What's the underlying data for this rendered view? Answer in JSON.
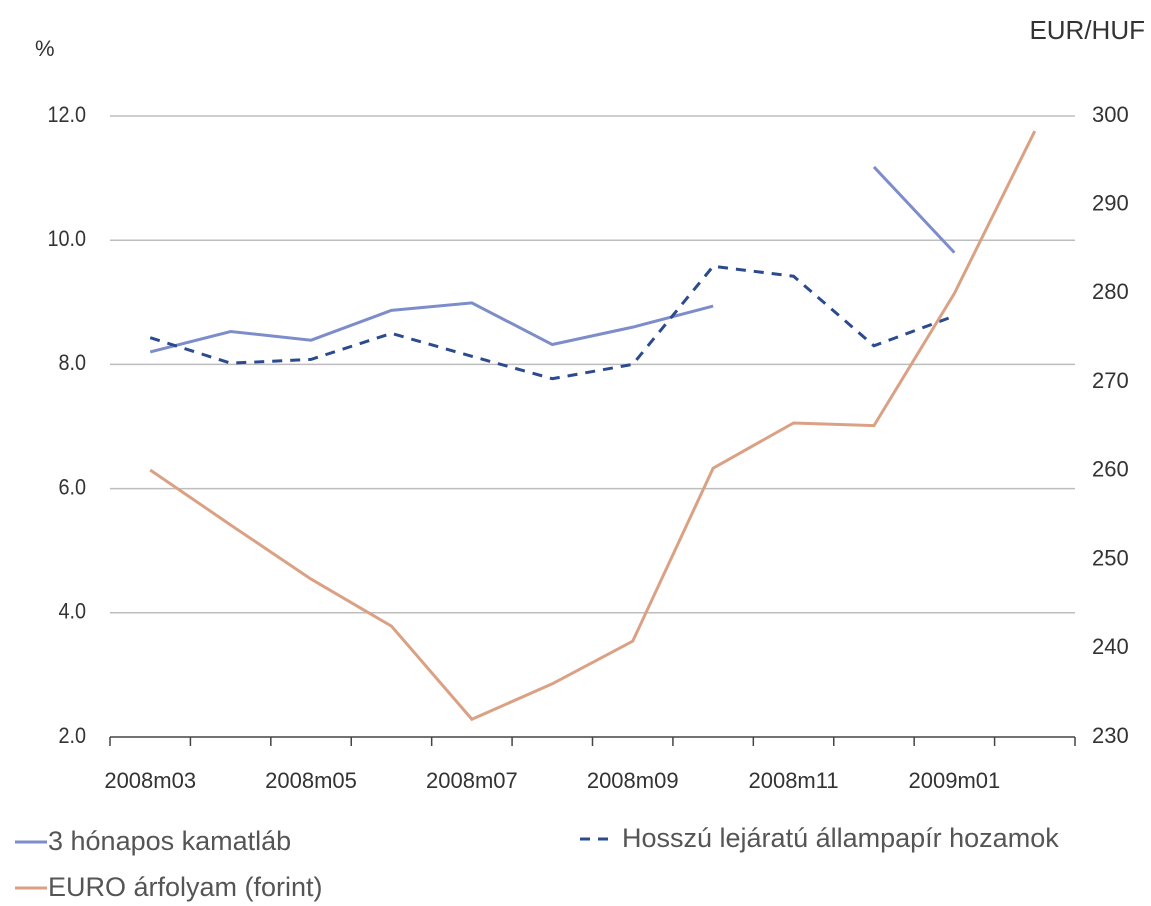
{
  "chart_data": {
    "type": "line",
    "ylabel": "%",
    "y2label": "EUR/HUF",
    "categories": [
      "2008m03",
      null,
      "2008m05",
      null,
      "2008m07",
      null,
      "2008m09",
      null,
      "2008m11",
      null,
      "2009m01",
      null
    ],
    "series": [
      {
        "name": "3 hónapos kamatláb",
        "color": "#7d8dca",
        "dash": false,
        "values": [
          8.2,
          8.53,
          8.39,
          8.87,
          8.99,
          8.32,
          8.6,
          8.94,
          null,
          11.18,
          9.8,
          null
        ]
      },
      {
        "name": "Hosszú lejáratú állampapír hozamok",
        "color": "#2c4a8e",
        "dash": true,
        "values": [
          8.43,
          8.02,
          8.08,
          8.5,
          8.13,
          7.77,
          8.0,
          9.58,
          9.42,
          8.3,
          8.78,
          null
        ]
      },
      {
        "name": "EURO árfolyam (forint)",
        "color": "#daa184",
        "dash": false,
        "axis": "y2",
        "values": [
          260.1,
          253.9,
          247.8,
          242.5,
          232.0,
          236.0,
          240.8,
          260.3,
          265.4,
          265.1,
          280.0,
          298.3
        ]
      }
    ],
    "ylim": [
      2,
      12
    ],
    "yticks": [
      {
        "value": 2,
        "label": "2.0"
      },
      {
        "value": 4,
        "label": "4.0"
      },
      {
        "value": 6,
        "label": "6.0"
      },
      {
        "value": 8,
        "label": "8.0"
      },
      {
        "value": 10,
        "label": "10.0"
      },
      {
        "value": 12,
        "label": "12.0"
      }
    ],
    "y2lim": [
      230,
      300
    ],
    "y2ticks": [
      230,
      240,
      250,
      260,
      270,
      280,
      290,
      300
    ],
    "grid": true,
    "legend": "bottom"
  }
}
